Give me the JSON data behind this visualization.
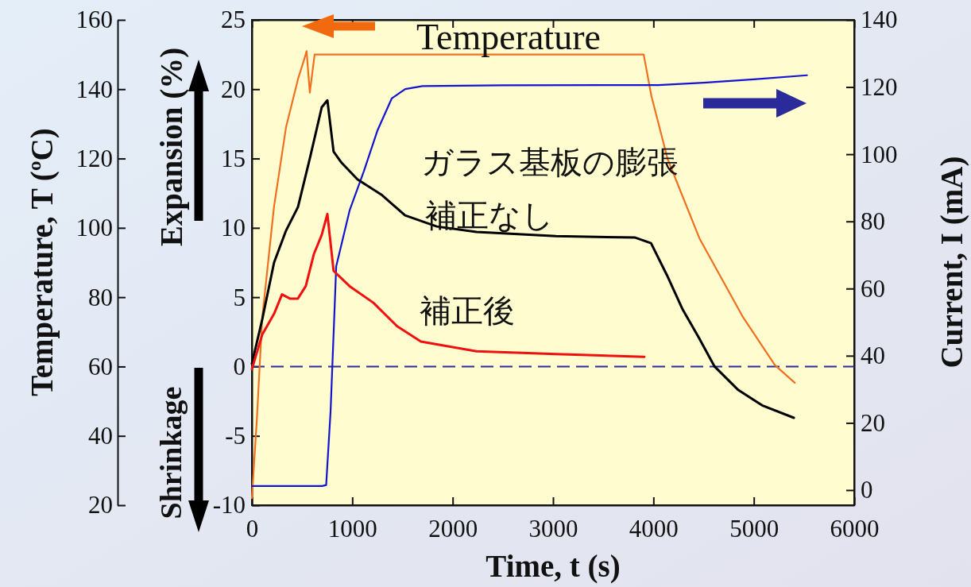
{
  "chart_data": {
    "type": "line",
    "xlabel": "Time, t (s)",
    "ylabel": "Expansion (%)",
    "y2label": "Current, I (mA)",
    "y3label": "Temperature, T (ºC)",
    "annotations": [
      "ガラス基板の膨張",
      "Shrinkage"
    ],
    "xlim": [
      0,
      6000
    ],
    "xticks": [
      0,
      1000,
      2000,
      3000,
      4000,
      5000,
      6000
    ],
    "ylim": [
      -10,
      25
    ],
    "yticks": [
      -10,
      -5,
      0,
      5,
      10,
      15,
      20,
      25
    ],
    "y2lim": [
      -4.5,
      140
    ],
    "y2ticks": [
      0,
      20,
      40,
      60,
      80,
      100,
      120,
      140
    ],
    "y3lim": [
      20,
      160
    ],
    "y3ticks": [
      20,
      40,
      60,
      80,
      100,
      120,
      140,
      160
    ],
    "ref_lines": [
      {
        "axis": "y",
        "value": 0,
        "color": "#2a2a9a",
        "line_style": "dashed"
      }
    ],
    "series": [
      {
        "name": "Temperature",
        "color": "#f07020",
        "axis": "y3",
        "x": [
          0,
          50,
          103,
          220,
          340,
          460,
          520,
          545,
          577,
          625,
          3903,
          3980,
          4141,
          4458,
          4893,
          5210,
          5408
        ],
        "values": [
          22,
          45,
          74,
          106,
          129,
          143,
          148.5,
          151,
          139,
          150,
          150,
          138,
          119.9,
          97,
          74.2,
          60.4,
          55.3
        ]
      },
      {
        "color": "#1414d0",
        "axis": "y2",
        "x": [
          0,
          700,
          740,
          784,
          840,
          975,
          1116,
          1250,
          1393,
          1528,
          1700,
          2500,
          3500,
          4050,
          4500,
          5000,
          5530
        ],
        "values": [
          1.2,
          1.2,
          1.5,
          23.5,
          66.6,
          83.4,
          95,
          107,
          116.6,
          119.4,
          120.3,
          120.5,
          120.6,
          120.6,
          121.3,
          122.3,
          123.5
        ]
      },
      {
        "name": "補正なし",
        "color": "#000000",
        "axis": "y",
        "x": [
          0,
          103,
          221,
          340,
          459,
          577,
          696,
          752,
          814,
          893,
          1051,
          1289,
          1526,
          1842,
          2237,
          3028,
          3818,
          3976,
          4134,
          4292,
          4451,
          4609,
          4846,
          5083,
          5399
        ],
        "values": [
          0.2,
          3.4,
          7.5,
          9.8,
          11.5,
          15,
          18.7,
          19.2,
          15.5,
          14.7,
          13.5,
          12.4,
          10.9,
          10.1,
          9.7,
          9.4,
          9.3,
          8.9,
          6.6,
          4.1,
          2.1,
          0,
          -1.7,
          -2.8,
          -3.7
        ]
      },
      {
        "name": "補正後",
        "color": "#f01010",
        "axis": "y",
        "x": [
          0,
          103,
          221,
          300,
          379,
          458,
          537,
          617,
          696,
          752,
          814,
          900,
          972,
          1210,
          1447,
          1684,
          2237,
          3028,
          3910
        ],
        "values": [
          -0.2,
          2.3,
          3.8,
          5.2,
          4.9,
          4.9,
          5.8,
          8.1,
          9.5,
          11,
          6.9,
          6.3,
          5.8,
          4.6,
          2.9,
          1.8,
          1.1,
          0.9,
          0.7
        ]
      }
    ]
  }
}
